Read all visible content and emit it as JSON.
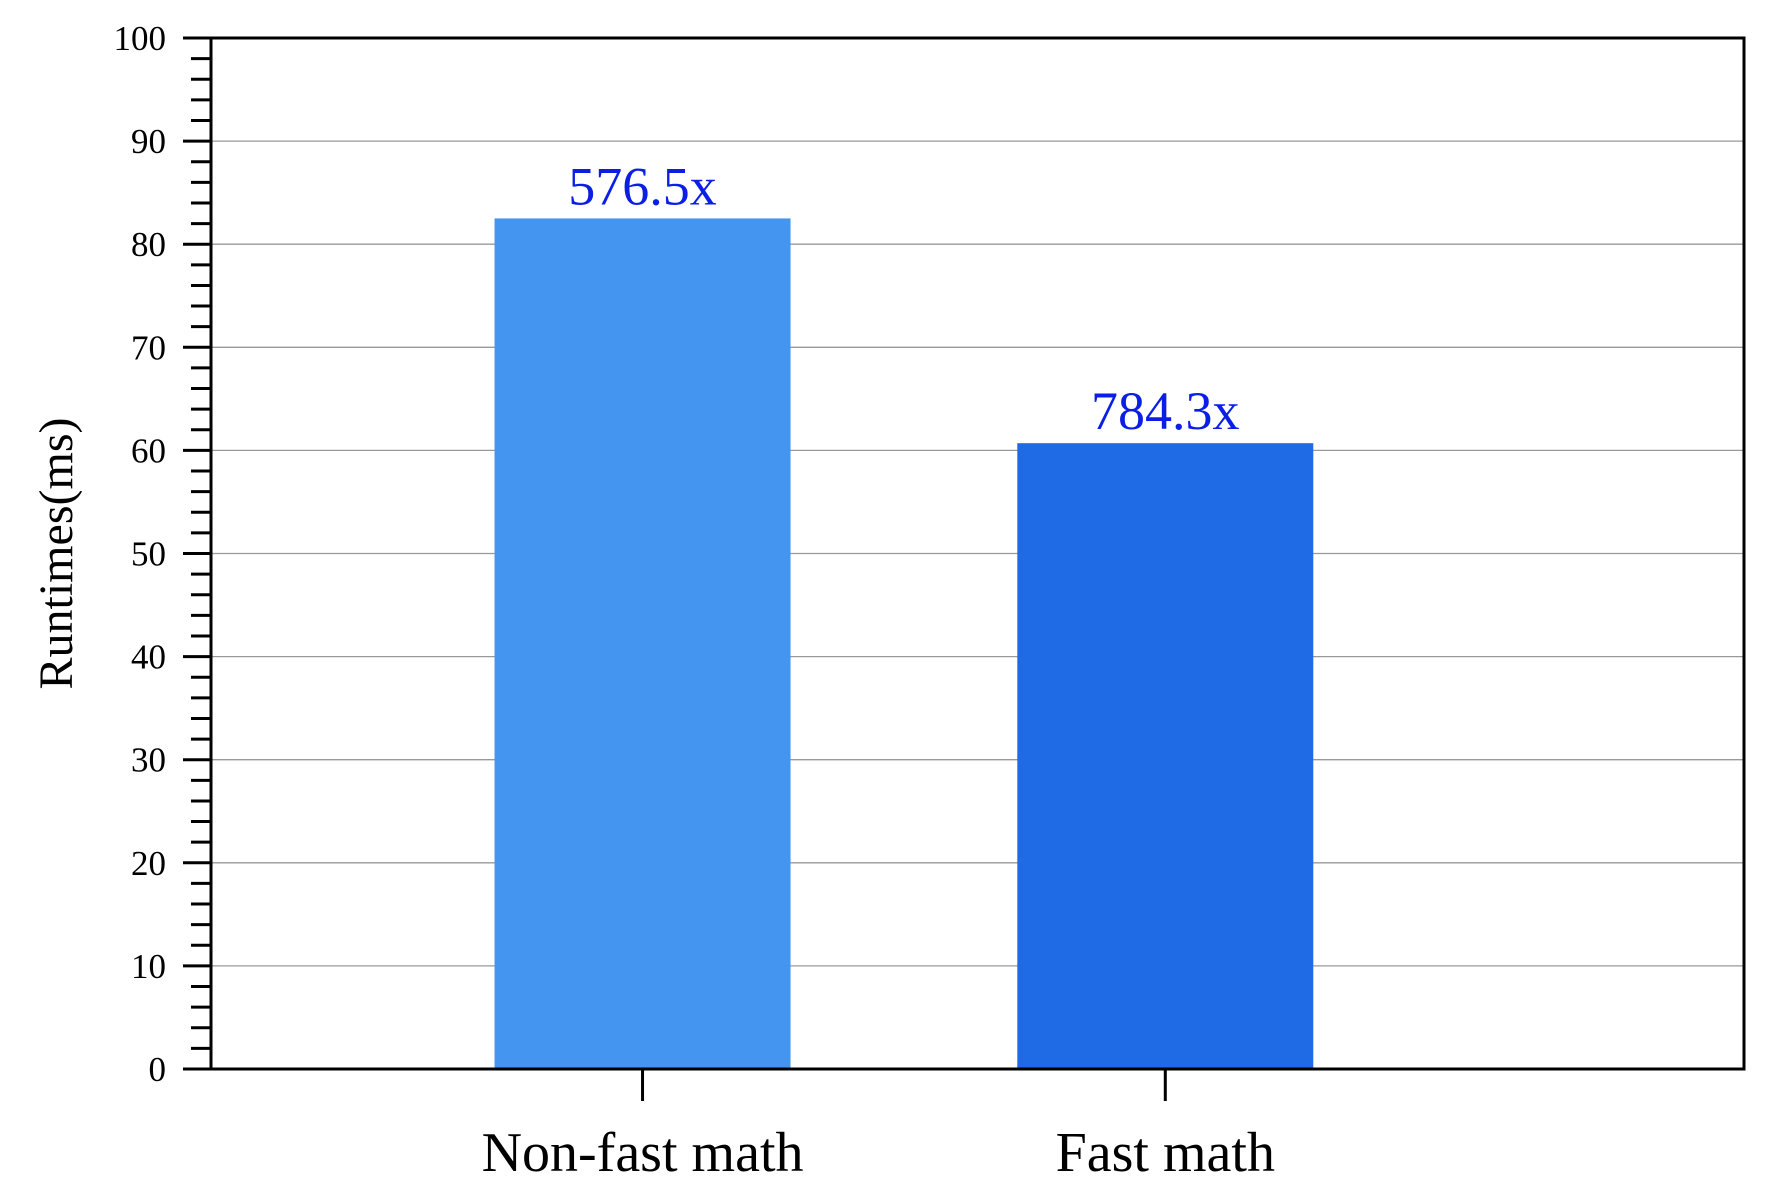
{
  "chart_data": {
    "type": "bar",
    "title": "",
    "xlabel": "",
    "ylabel": "Runtimes(ms)",
    "categories": [
      "Non-fast math",
      "Fast math"
    ],
    "values": [
      82.5,
      60.7
    ],
    "data_labels": [
      "576.5x",
      "784.3x"
    ],
    "ylim": [
      0,
      100
    ],
    "yticks": [
      "0",
      "10",
      "20",
      "30",
      "40",
      "50",
      "60",
      "70",
      "80",
      "90",
      "100"
    ],
    "grid": "horizontal",
    "legend": "none",
    "colors": {
      "bars": [
        "#4395ef",
        "#1f6ae5"
      ],
      "data_label": "#0a1ee6",
      "grid": "#999999",
      "axis": "#000000"
    }
  }
}
